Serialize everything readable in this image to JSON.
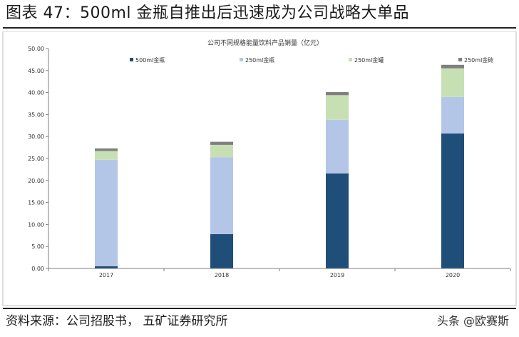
{
  "figure": {
    "title": "图表 47：500ml 金瓶自推出后迅速成为公司战略大单品",
    "source": "资料来源：公司招股书，  五矿证券研究所",
    "watermark": "头条 @欧赛斯"
  },
  "chart_data": {
    "type": "bar",
    "stacked": true,
    "title": "公司不同规格能量饮料产品销量（亿元）",
    "xlabel": "",
    "ylabel": "",
    "categories": [
      "2017",
      "2018",
      "2019",
      "2020"
    ],
    "ylim": [
      0,
      50
    ],
    "yticks": [
      "0.00",
      "5.00",
      "10.00",
      "15.00",
      "20.00",
      "25.00",
      "30.00",
      "35.00",
      "40.00",
      "45.00",
      "50.00"
    ],
    "legend_position": "top",
    "grid": false,
    "series": [
      {
        "name": "500ml金瓶",
        "color": "#1f4e79",
        "values": [
          0.5,
          7.8,
          21.6,
          30.7
        ]
      },
      {
        "name": "250ml金瓶",
        "color": "#b4c6e7",
        "values": [
          24.2,
          17.5,
          12.2,
          8.3
        ]
      },
      {
        "name": "250ml金罐",
        "color": "#c6e0b4",
        "values": [
          2.0,
          2.8,
          5.6,
          6.5
        ]
      },
      {
        "name": "250ml金砖",
        "color": "#7f7f7f",
        "values": [
          0.6,
          0.7,
          0.7,
          0.8
        ]
      }
    ]
  }
}
